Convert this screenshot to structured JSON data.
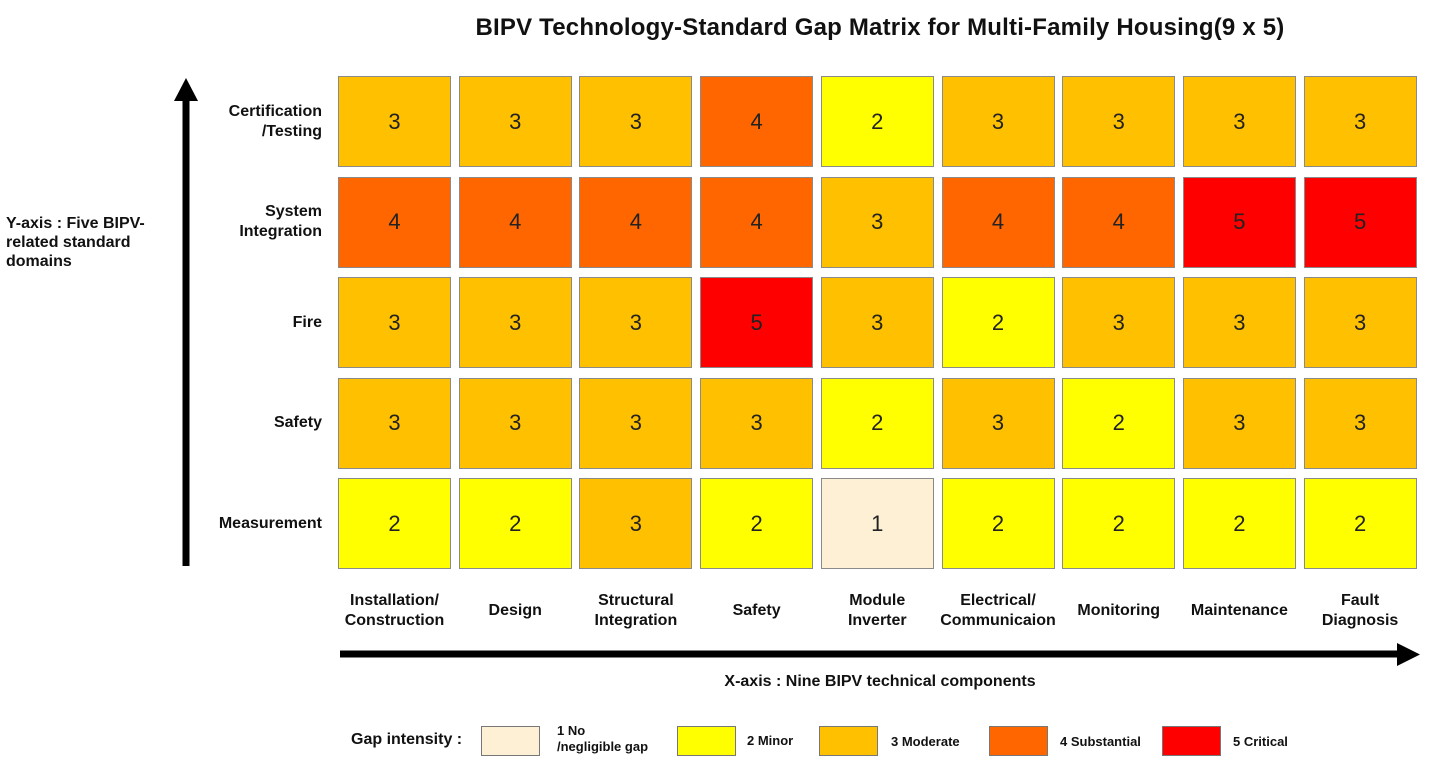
{
  "chart_data": {
    "type": "heatmap",
    "title": "BIPV Technology-Standard Gap Matrix for Multi-Family Housing(9 x 5)",
    "ylabel": "Y-axis : Five BIPV-related standard domains",
    "xlabel": "X-axis : Nine BIPV technical components",
    "rows": [
      [
        "Certification",
        "/Testing"
      ],
      [
        "System",
        "Integration"
      ],
      [
        "Fire"
      ],
      [
        "Safety"
      ],
      [
        "Measurement"
      ]
    ],
    "columns": [
      [
        "Installation/",
        "Construction"
      ],
      [
        "Design"
      ],
      [
        "Structural",
        "Integration"
      ],
      [
        "Safety"
      ],
      [
        "Module",
        "Inverter"
      ],
      [
        "Electrical/",
        "Communicaion"
      ],
      [
        "Monitoring"
      ],
      [
        "Maintenance"
      ],
      [
        "Fault",
        "Diagnosis"
      ]
    ],
    "values": [
      [
        3,
        3,
        3,
        4,
        2,
        3,
        3,
        3,
        3
      ],
      [
        4,
        4,
        4,
        4,
        3,
        4,
        4,
        5,
        5
      ],
      [
        3,
        3,
        3,
        5,
        3,
        2,
        3,
        3,
        3
      ],
      [
        3,
        3,
        3,
        3,
        2,
        3,
        2,
        3,
        3
      ],
      [
        2,
        2,
        3,
        2,
        1,
        2,
        2,
        2,
        2
      ]
    ],
    "scale_colors": {
      "1": "#FDF0D5",
      "2": "#FFFF00",
      "3": "#FFC000",
      "4": "#FF6600",
      "5": "#FF0000"
    },
    "legend": {
      "title": "Gap intensity :",
      "items": [
        {
          "value": 1,
          "label": [
            "1 No",
            "/negligible gap"
          ]
        },
        {
          "value": 2,
          "label": [
            "2 Minor"
          ]
        },
        {
          "value": 3,
          "label": [
            "3 Moderate"
          ]
        },
        {
          "value": 4,
          "label": [
            "4 Substantial"
          ]
        },
        {
          "value": 5,
          "label": [
            "5 Critical"
          ]
        }
      ]
    }
  }
}
